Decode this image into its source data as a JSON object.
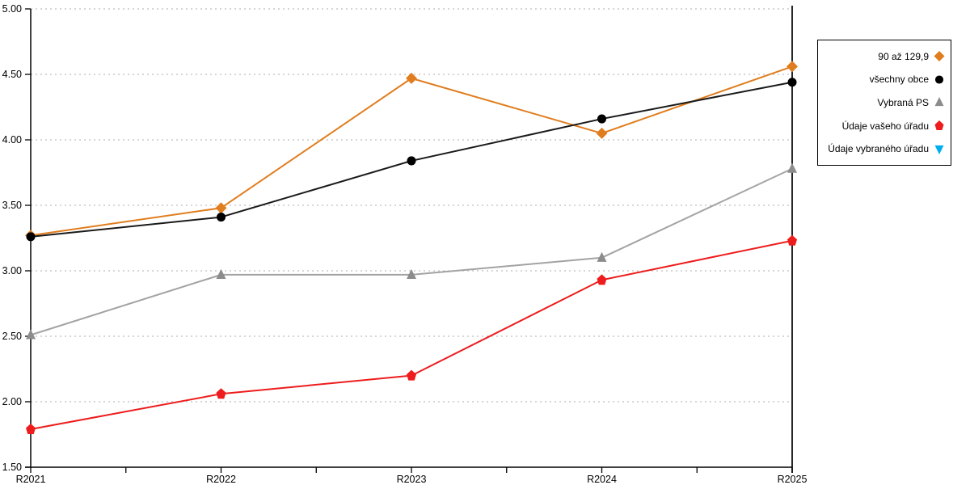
{
  "chart_data": {
    "type": "line",
    "title": "",
    "xlabel": "",
    "ylabel": "",
    "x_categories": [
      "R2021",
      "R2022",
      "R2023",
      "R2024",
      "R2025"
    ],
    "ylim": [
      1.5,
      5.0
    ],
    "yticks": [
      1.5,
      2.0,
      2.5,
      3.0,
      3.5,
      4.0,
      4.5,
      5.0
    ],
    "ytick_labels": [
      "1.50",
      "2.00",
      "2.50",
      "3.00",
      "3.50",
      "4.00",
      "4.50",
      "5.00"
    ],
    "grid": "horizontal-dotted",
    "grid_color": "#bdbdbd",
    "axis_color": "#000000",
    "legend_position": "right-outside",
    "series": [
      {
        "name": "90 až 129,9",
        "marker": "diamond",
        "color": "#e07d1e",
        "line_color": "#e07d1e",
        "values": [
          3.27,
          3.48,
          4.47,
          4.05,
          4.56
        ]
      },
      {
        "name": "všechny obce",
        "marker": "circle",
        "color": "#000000",
        "line_color": "#1a1a1a",
        "values": [
          3.26,
          3.41,
          3.84,
          4.16,
          4.44
        ]
      },
      {
        "name": "Vybraná PS",
        "marker": "triangle-up",
        "color": "#8c8c8c",
        "line_color": "#a3a3a3",
        "values": [
          2.51,
          2.97,
          2.97,
          3.1,
          3.78
        ]
      },
      {
        "name": "Údaje vašeho úřadu",
        "marker": "pentagon",
        "color": "#ee1c1c",
        "line_color": "#ee1c1c",
        "values": [
          1.79,
          2.06,
          2.2,
          2.93,
          3.23
        ]
      },
      {
        "name": "Údaje vybraného úřadu",
        "marker": "triangle-down",
        "color": "#00aeef",
        "line_color": "#00aeef",
        "values": []
      }
    ]
  }
}
